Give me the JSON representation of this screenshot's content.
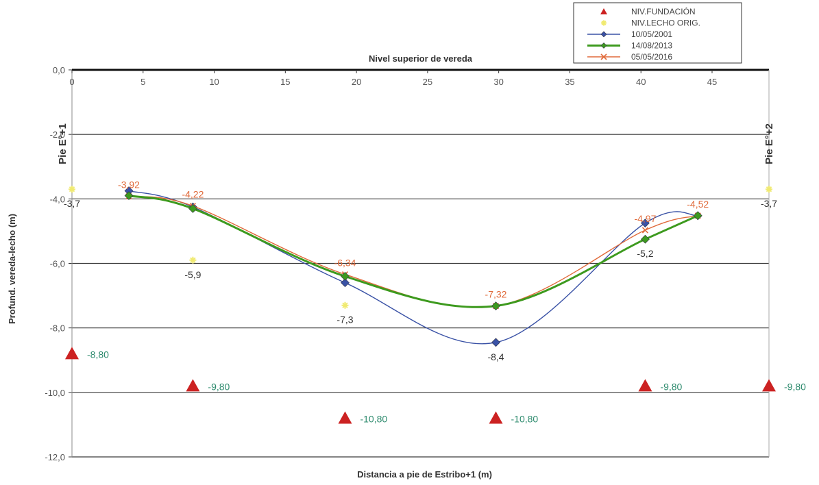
{
  "chart_data": {
    "type": "line",
    "xlabel": "Distancia a pie de Estribo+1 (m)",
    "ylabel": "Profund. vereda-lecho (m)",
    "top_axis_label": "Nivel superior de vereda",
    "xlim": [
      0,
      49
    ],
    "ylim": [
      -12,
      0
    ],
    "x_ticks": [
      0,
      5,
      10,
      15,
      20,
      25,
      30,
      35,
      40,
      45
    ],
    "x_tick_labels": [
      "0",
      "5",
      "10",
      "15",
      "20",
      "25",
      "30",
      "35",
      "40",
      "45"
    ],
    "y_ticks": [
      0,
      -2,
      -4,
      -6,
      -8,
      -10,
      -12
    ],
    "y_tick_labels": [
      "0,0",
      "-2,0",
      "-4,0",
      "-6,0",
      "-8,0",
      "-10,0",
      "-12,0"
    ],
    "grid": true,
    "legend_position": "top-right",
    "pier_labels": [
      {
        "text": "Pie E°+1",
        "x": 0,
        "side": "left"
      },
      {
        "text": "Pie E°+2",
        "x": 49,
        "side": "right"
      }
    ],
    "series": [
      {
        "name": "NIV.FUNDACIÓN",
        "color": "#cc2222",
        "marker": "triangle",
        "line": false,
        "label_color": "#2e8b6e",
        "points": [
          {
            "x": 0,
            "y": -8.8,
            "label": "-8,80"
          },
          {
            "x": 8.5,
            "y": -9.8,
            "label": "-9,80"
          },
          {
            "x": 19.2,
            "y": -10.8,
            "label": "-10,80"
          },
          {
            "x": 29.8,
            "y": -10.8,
            "label": "-10,80"
          },
          {
            "x": 40.3,
            "y": -9.8,
            "label": "-9,80"
          },
          {
            "x": 49,
            "y": -9.8,
            "label": "-9,80"
          }
        ]
      },
      {
        "name": "NIV.LECHO ORIG.",
        "color": "#f0ea70",
        "marker": "star",
        "line": false,
        "label_color": "#333333",
        "points": [
          {
            "x": 0,
            "y": -3.7,
            "label": "-3,7"
          },
          {
            "x": 8.5,
            "y": -5.9,
            "label": "-5,9"
          },
          {
            "x": 19.2,
            "y": -7.3,
            "label": "-7,3"
          },
          {
            "x": 49,
            "y": -3.7,
            "label": "-3,7"
          }
        ]
      },
      {
        "name": "10/05/2001",
        "color": "#3a52a6",
        "marker": "diamond",
        "line": true,
        "label_color": "#333333",
        "points": [
          {
            "x": 4,
            "y": -3.75
          },
          {
            "x": 8.5,
            "y": -4.25
          },
          {
            "x": 19.2,
            "y": -6.6
          },
          {
            "x": 29.8,
            "y": -8.45,
            "label": "-8,4"
          },
          {
            "x": 40.3,
            "y": -4.75
          },
          {
            "x": 44,
            "y": -4.52
          }
        ]
      },
      {
        "name": "14/08/2013",
        "color": "#3d9a1e",
        "marker": "diamond",
        "line": true,
        "label_color": "#333333",
        "points": [
          {
            "x": 4,
            "y": -3.9
          },
          {
            "x": 8.5,
            "y": -4.3
          },
          {
            "x": 19.2,
            "y": -6.4
          },
          {
            "x": 29.8,
            "y": -7.32
          },
          {
            "x": 40.3,
            "y": -5.25,
            "label": "-5,2"
          },
          {
            "x": 44,
            "y": -4.52
          }
        ]
      },
      {
        "name": "05/05/2016",
        "color": "#e06a3a",
        "marker": "x",
        "line": true,
        "label_color": "#e06a3a",
        "points": [
          {
            "x": 4,
            "y": -3.92,
            "label": "-3,92"
          },
          {
            "x": 8.5,
            "y": -4.22,
            "label": "-4,22"
          },
          {
            "x": 19.2,
            "y": -6.34,
            "label": "-6,34"
          },
          {
            "x": 29.8,
            "y": -7.32,
            "label": "-7,32"
          },
          {
            "x": 40.3,
            "y": -4.97,
            "label": "-4,97"
          },
          {
            "x": 44,
            "y": -4.52,
            "label": "-4,52"
          }
        ]
      }
    ]
  }
}
